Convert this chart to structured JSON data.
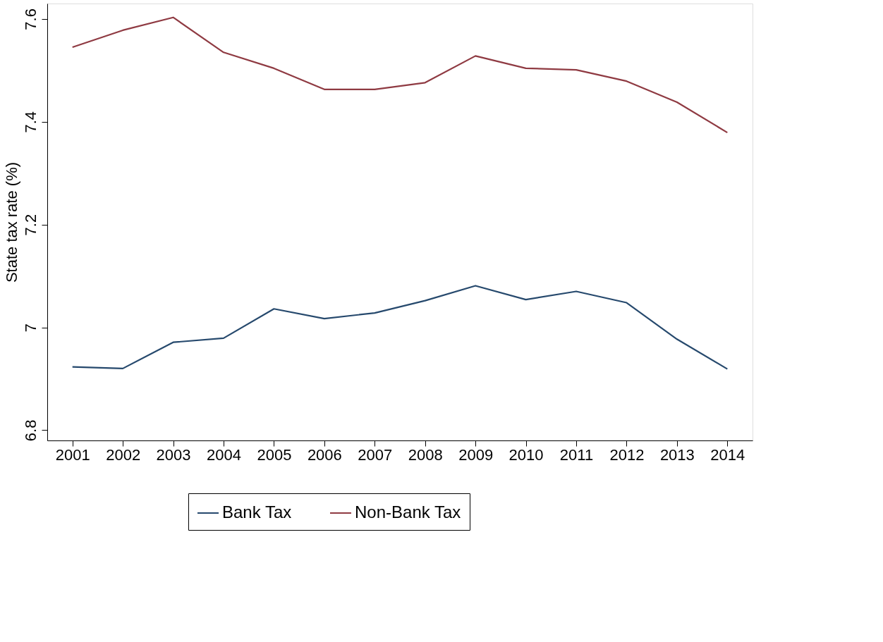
{
  "chart_data": {
    "type": "line",
    "ylabel": "State tax rate (%)",
    "categories": [
      "2001",
      "2002",
      "2003",
      "2004",
      "2005",
      "2006",
      "2007",
      "2008",
      "2009",
      "2010",
      "2011",
      "2012",
      "2013",
      "2014"
    ],
    "series": [
      {
        "name": "Bank Tax",
        "color": "#26496d",
        "values": [
          6.923,
          6.92,
          6.971,
          6.979,
          7.036,
          7.017,
          7.028,
          7.052,
          7.081,
          7.054,
          7.07,
          7.048,
          6.977,
          6.919
        ]
      },
      {
        "name": "Non-Bank Tax",
        "color": "#8f3a42",
        "values": [
          7.545,
          7.578,
          7.603,
          7.535,
          7.504,
          7.463,
          7.463,
          7.476,
          7.528,
          7.504,
          7.501,
          7.479,
          7.438,
          7.379
        ]
      }
    ],
    "ylim": [
      6.78,
      7.63
    ],
    "yticks": [
      6.8,
      7,
      7.2,
      7.4,
      7.6
    ],
    "grid": false,
    "legend": "bottom",
    "marker": "none",
    "line_style": "solid"
  }
}
